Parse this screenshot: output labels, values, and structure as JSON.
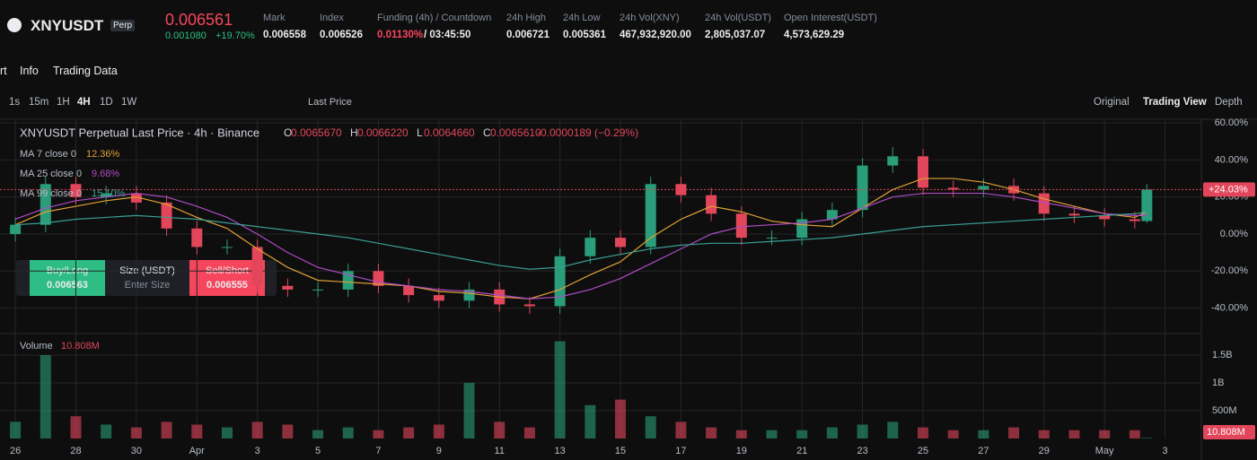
{
  "header": {
    "symbol": "XNYUSDT",
    "badge": "Perp",
    "price": "0.006561",
    "change": "0.001080",
    "change_pct": "+19.70%",
    "stats": [
      {
        "label": "Mark",
        "value": "0.006558"
      },
      {
        "label": "Index",
        "value": "0.006526"
      },
      {
        "label": "24h High",
        "value": "0.006721"
      },
      {
        "label": "24h Low",
        "value": "0.005361"
      },
      {
        "label": "24h Vol(XNY)",
        "value": "467,932,920.00"
      },
      {
        "label": "24h Vol(USDT)",
        "value": "2,805,037.07"
      },
      {
        "label": "Open Interest(USDT)",
        "value": "4,573,629.29"
      }
    ],
    "funding": {
      "label": "Funding (4h) / Countdown",
      "rate": "0.01130%",
      "countdown": "/ 03:45:50"
    }
  },
  "tabs": [
    "rt",
    "Info",
    "Trading Data"
  ],
  "toolbar": {
    "intervals": [
      "1s",
      "15m",
      "1H",
      "4H",
      "1D",
      "1W"
    ],
    "price_type": "Last Price",
    "views": [
      "Original",
      "Trading View",
      "Depth"
    ]
  },
  "trade": {
    "buy": "Buy/Long",
    "buy_price": "0.006563",
    "size": "Size (USDT)",
    "size_placeholder": "Enter Size",
    "sell": "Sell/Short",
    "sell_price": "0.006555"
  },
  "chart_data": {
    "type": "candlestick",
    "legend": {
      "title": "XNYUSDT Perpetual Last Price · 4h · Binance",
      "ohlc": [
        {
          "key": "O",
          "value": "0.0065670"
        },
        {
          "key": "H",
          "value": "0.0066220"
        },
        {
          "key": "L",
          "value": "0.0064660"
        },
        {
          "key": "C",
          "value": "0.0065610"
        }
      ],
      "change": "-0.0000189 (−0.29%)",
      "ma": [
        {
          "name": "MA 7 close 0",
          "value": "12.36%"
        },
        {
          "name": "MA 25 close 0",
          "value": "9.68%"
        },
        {
          "name": "MA 99 close 0",
          "value": "15.10%"
        }
      ],
      "volume": "Volume"
    },
    "x": [
      0,
      1,
      2,
      3,
      4,
      5,
      6,
      7,
      8,
      9,
      10,
      11,
      12,
      13,
      14,
      15,
      16,
      17,
      18,
      19,
      20,
      21,
      22,
      23,
      24,
      25,
      26,
      27,
      28,
      29,
      30,
      31,
      32,
      33,
      34,
      35,
      36,
      37,
      37.4
    ],
    "open": [
      0,
      5,
      27,
      20,
      22,
      17,
      3,
      -7,
      -7,
      -28,
      -30,
      -30,
      -20,
      -28,
      -33,
      -36,
      -30,
      -38,
      -39,
      -12,
      -2,
      -7,
      27,
      21,
      11,
      -2,
      -2,
      8,
      13,
      37,
      42,
      25,
      24,
      26,
      22,
      11,
      10,
      8,
      7
    ],
    "high": [
      9,
      31,
      31,
      26,
      26,
      21,
      7,
      -3,
      -3,
      -24,
      -26,
      -16,
      -16,
      -24,
      -29,
      -26,
      -26,
      -34,
      -8,
      2,
      2,
      31,
      31,
      25,
      15,
      2,
      12,
      17,
      41,
      47,
      46,
      29,
      30,
      30,
      26,
      15,
      14,
      12,
      27
    ],
    "low": [
      -4,
      1,
      16,
      16,
      13,
      -1,
      -11,
      -11,
      -32,
      -34,
      -34,
      -34,
      -32,
      -37,
      -40,
      -40,
      -42,
      -43,
      -43,
      -16,
      -11,
      -11,
      17,
      7,
      -6,
      -6,
      -6,
      4,
      9,
      33,
      21,
      20,
      20,
      18,
      7,
      6,
      4,
      3,
      6
    ],
    "close": [
      5,
      27,
      20,
      22,
      17,
      3,
      -7,
      -7,
      -28,
      -30,
      -30,
      -20,
      -28,
      -33,
      -36,
      -30,
      -38,
      -39,
      -12,
      -2,
      -7,
      27,
      21,
      11,
      -2,
      -2,
      8,
      13,
      37,
      42,
      25,
      24,
      26,
      22,
      11,
      10,
      8,
      7,
      24.03
    ],
    "volume": [
      300000000,
      1500000000,
      400000000,
      250000000,
      200000000,
      300000000,
      250000000,
      200000000,
      300000000,
      250000000,
      150000000,
      200000000,
      150000000,
      200000000,
      250000000,
      1000000000,
      300000000,
      200000000,
      1750000000,
      600000000,
      700000000,
      400000000,
      300000000,
      200000000,
      150000000,
      150000000,
      150000000,
      200000000,
      250000000,
      300000000,
      200000000,
      150000000,
      150000000,
      200000000,
      150000000,
      150000000,
      150000000,
      150000000,
      10808000
    ],
    "up_color": "#2a9d7a",
    "down_color": "#e2465b",
    "ma_series": [
      {
        "color": "#e0a035",
        "values": [
          5,
          12,
          15,
          18,
          20,
          16,
          9,
          3,
          -8,
          -18,
          -25,
          -26,
          -27,
          -28,
          -31,
          -32,
          -34,
          -35,
          -30,
          -22,
          -15,
          -2,
          8,
          15,
          12,
          7,
          5,
          4,
          14,
          24,
          30,
          30,
          28,
          24,
          19,
          15,
          11,
          9,
          12
        ]
      },
      {
        "color": "#b04bc7",
        "values": [
          8,
          14,
          18,
          20,
          22,
          20,
          15,
          9,
          0,
          -10,
          -18,
          -22,
          -26,
          -28,
          -30,
          -31,
          -33,
          -35,
          -34,
          -30,
          -24,
          -16,
          -8,
          0,
          4,
          5,
          6,
          8,
          14,
          20,
          22,
          22,
          22,
          20,
          17,
          14,
          11,
          10,
          10
        ]
      },
      {
        "color": "#3a9e94",
        "values": [
          5,
          6,
          8,
          9,
          10,
          9,
          8,
          6,
          4,
          2,
          0,
          -2,
          -5,
          -8,
          -11,
          -14,
          -17,
          -19,
          -18,
          -14,
          -11,
          -8,
          -6,
          -5,
          -5,
          -4,
          -3,
          -2,
          0,
          2,
          4,
          5,
          6,
          7,
          8,
          9,
          10,
          11,
          12
        ]
      }
    ],
    "last_price": {
      "value": 24.03,
      "label": "+24.03%"
    },
    "last_volume": {
      "value": 10808000,
      "label": "10.808M"
    },
    "xlim": [
      -0.27,
      39.2
    ],
    "xticks": [
      {
        "value": 0,
        "label": "26"
      },
      {
        "value": 2,
        "label": "28"
      },
      {
        "value": 4,
        "label": "30"
      },
      {
        "value": 6,
        "label": "Apr"
      },
      {
        "value": 8,
        "label": "3"
      },
      {
        "value": 10,
        "label": "5"
      },
      {
        "value": 12,
        "label": "7"
      },
      {
        "value": 14,
        "label": "9"
      },
      {
        "value": 16,
        "label": "11"
      },
      {
        "value": 18,
        "label": "13"
      },
      {
        "value": 20,
        "label": "15"
      },
      {
        "value": 22,
        "label": "17"
      },
      {
        "value": 24,
        "label": "19"
      },
      {
        "value": 26,
        "label": "21"
      },
      {
        "value": 28,
        "label": "23"
      },
      {
        "value": 30,
        "label": "25"
      },
      {
        "value": 32,
        "label": "27"
      },
      {
        "value": 34,
        "label": "29"
      },
      {
        "value": 36,
        "label": "May"
      },
      {
        "value": 38,
        "label": "3"
      }
    ],
    "ylim": [
      -52.8,
      62
    ],
    "yticks": [
      {
        "value": 60,
        "label": "60.00%"
      },
      {
        "value": 40,
        "label": "40.00%"
      },
      {
        "value": 20,
        "label": "20.00%"
      },
      {
        "value": 0,
        "label": "0.00%"
      },
      {
        "value": -20,
        "label": "-20.00%"
      },
      {
        "value": -40,
        "label": "-40.00%"
      }
    ],
    "vlim": [
      0,
      1840000000
    ],
    "vticks": [
      {
        "value": 1500000000,
        "label": "1.5B"
      },
      {
        "value": 1000000000,
        "label": "1B"
      },
      {
        "value": 500000000,
        "label": "500M"
      }
    ],
    "grid": true
  }
}
